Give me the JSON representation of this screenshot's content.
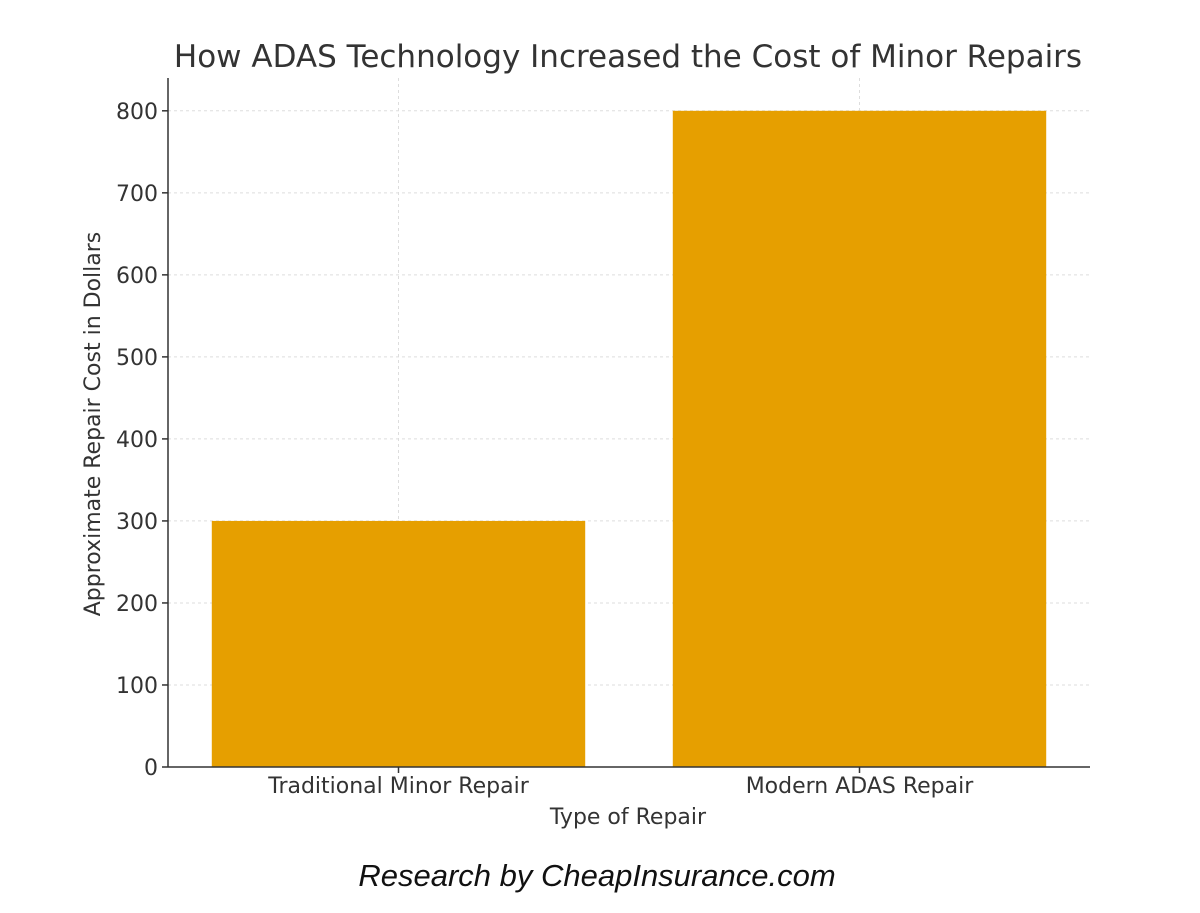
{
  "chart_data": {
    "type": "bar",
    "title": "How ADAS Technology Increased the Cost of Minor Repairs",
    "xlabel": "Type of Repair",
    "ylabel": "Approximate Repair Cost in Dollars",
    "categories": [
      "Traditional Minor Repair",
      "Modern ADAS Repair"
    ],
    "values": [
      300,
      800
    ],
    "ylim": [
      0,
      840
    ],
    "yticks": [
      0,
      100,
      200,
      300,
      400,
      500,
      600,
      700,
      800
    ],
    "grid": true,
    "bar_color": "#E69F00"
  },
  "footer": {
    "credit": "Research by CheapInsurance.com"
  }
}
